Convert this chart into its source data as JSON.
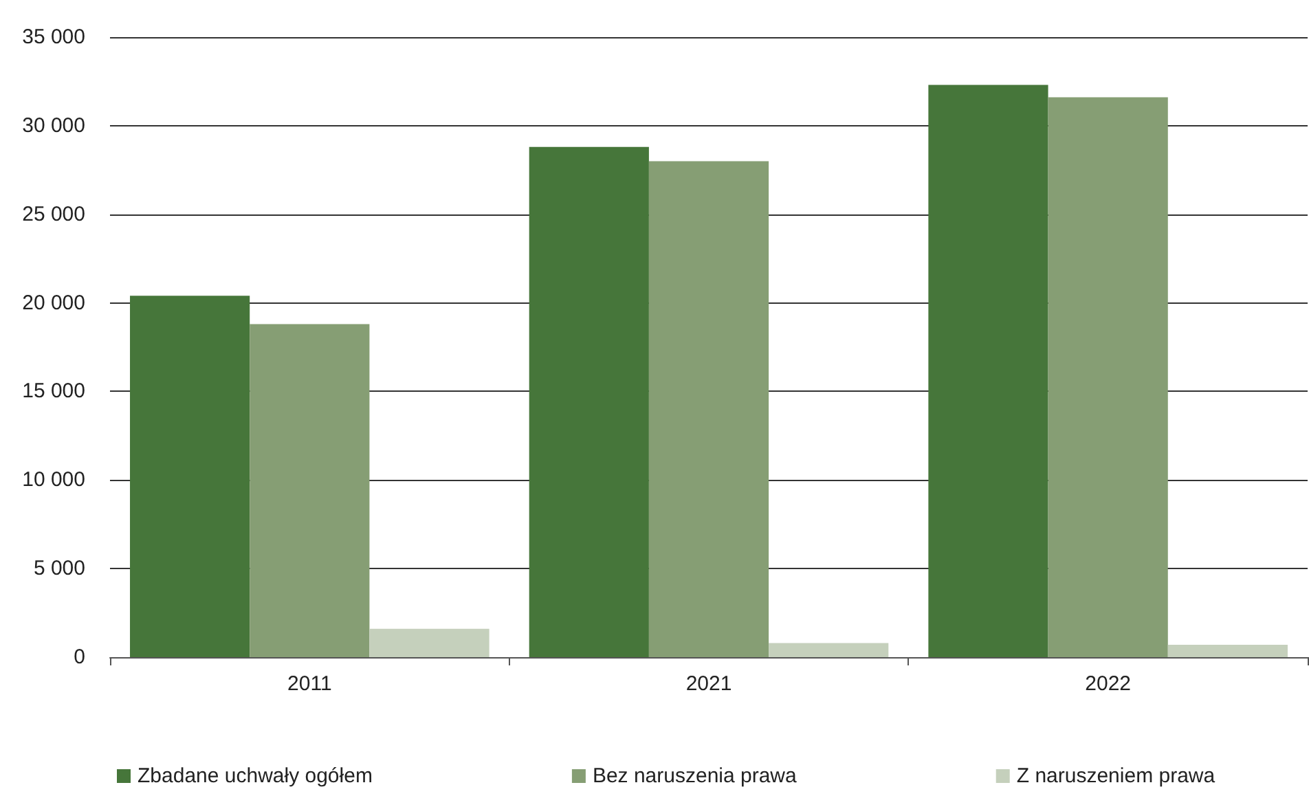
{
  "chart_data": {
    "type": "bar",
    "categories": [
      "2011",
      "2021",
      "2022"
    ],
    "series": [
      {
        "name": "Zbadane uchwały ogółem",
        "color": "#46763a",
        "values": [
          20400,
          28800,
          32300
        ]
      },
      {
        "name": "Bez naruszenia prawa",
        "color": "#869e74",
        "values": [
          18800,
          28000,
          31600
        ]
      },
      {
        "name": "Z naruszeniem prawa",
        "color": "#c5d0bc",
        "values": [
          1600,
          800,
          700
        ]
      }
    ],
    "ylim": [
      0,
      35000
    ],
    "yticks": [
      0,
      5000,
      10000,
      15000,
      20000,
      25000,
      30000,
      35000
    ],
    "grid": "y",
    "legend": "bottom"
  }
}
